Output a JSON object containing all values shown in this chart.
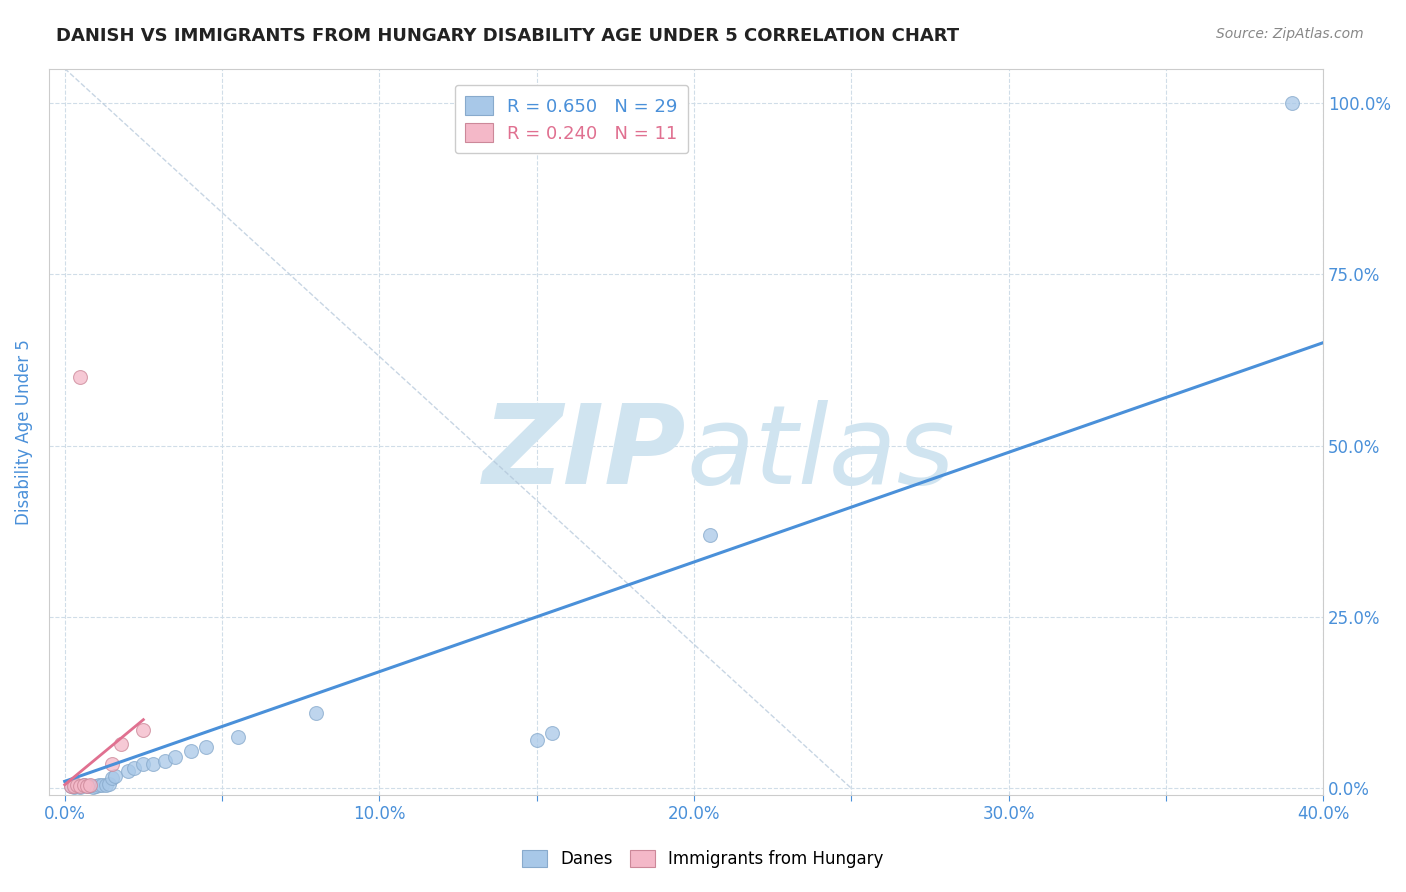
{
  "title": "DANISH VS IMMIGRANTS FROM HUNGARY DISABILITY AGE UNDER 5 CORRELATION CHART",
  "source_text": "Source: ZipAtlas.com",
  "ylabel": "Disability Age Under 5",
  "xlim": [
    -0.5,
    40.0
  ],
  "ylim": [
    -1.0,
    105.0
  ],
  "xticks": [
    0.0,
    5.0,
    10.0,
    15.0,
    20.0,
    25.0,
    30.0,
    35.0,
    40.0
  ],
  "yticks": [
    0.0,
    25.0,
    50.0,
    75.0,
    100.0
  ],
  "xtick_labels": [
    "0.0%",
    "",
    "10.0%",
    "",
    "20.0%",
    "",
    "30.0%",
    "",
    "40.0%"
  ],
  "ytick_labels_right": [
    "0.0%",
    "25.0%",
    "50.0%",
    "75.0%",
    "100.0%"
  ],
  "blue_R": 0.65,
  "blue_N": 29,
  "pink_R": 0.24,
  "pink_N": 11,
  "blue_color": "#a8c8e8",
  "pink_color": "#f4b8c8",
  "blue_line_color": "#4a90d9",
  "pink_line_color": "#e07090",
  "blue_scatter": [
    [
      0.2,
      0.3
    ],
    [
      0.3,
      0.2
    ],
    [
      0.4,
      0.3
    ],
    [
      0.5,
      0.2
    ],
    [
      0.6,
      0.4
    ],
    [
      0.7,
      0.3
    ],
    [
      0.8,
      0.3
    ],
    [
      0.9,
      0.2
    ],
    [
      1.0,
      0.3
    ],
    [
      1.1,
      0.4
    ],
    [
      1.2,
      0.5
    ],
    [
      1.3,
      0.4
    ],
    [
      1.4,
      0.6
    ],
    [
      1.5,
      1.5
    ],
    [
      1.6,
      1.8
    ],
    [
      2.0,
      2.5
    ],
    [
      2.2,
      3.0
    ],
    [
      2.5,
      3.5
    ],
    [
      2.8,
      3.5
    ],
    [
      3.2,
      4.0
    ],
    [
      3.5,
      4.5
    ],
    [
      4.0,
      5.5
    ],
    [
      4.5,
      6.0
    ],
    [
      5.5,
      7.5
    ],
    [
      8.0,
      11.0
    ],
    [
      15.0,
      7.0
    ],
    [
      15.5,
      8.0
    ],
    [
      20.5,
      37.0
    ],
    [
      39.0,
      100.0
    ]
  ],
  "pink_scatter": [
    [
      0.2,
      0.3
    ],
    [
      0.3,
      0.3
    ],
    [
      0.4,
      0.4
    ],
    [
      0.5,
      0.3
    ],
    [
      0.6,
      0.4
    ],
    [
      0.7,
      0.3
    ],
    [
      0.8,
      0.4
    ],
    [
      1.5,
      3.5
    ],
    [
      1.8,
      6.5
    ],
    [
      2.5,
      8.5
    ],
    [
      0.5,
      60.0
    ]
  ],
  "blue_trend_x": [
    0.0,
    40.0
  ],
  "blue_trend_y": [
    1.0,
    65.0
  ],
  "pink_trend_x": [
    0.0,
    2.5
  ],
  "pink_trend_y": [
    0.5,
    10.0
  ],
  "dashed_trend_x": [
    0.0,
    25.0
  ],
  "dashed_trend_y": [
    105.0,
    0.0
  ],
  "watermark_zip": "ZIP",
  "watermark_atlas": "atlas",
  "watermark_color": "#d0e4f0",
  "legend_labels": [
    "Danes",
    "Immigrants from Hungary"
  ],
  "title_color": "#222222",
  "axis_label_color": "#4a90d9",
  "tick_label_color": "#4a90d9",
  "grid_color": "#d0dde8",
  "background_color": "#ffffff"
}
